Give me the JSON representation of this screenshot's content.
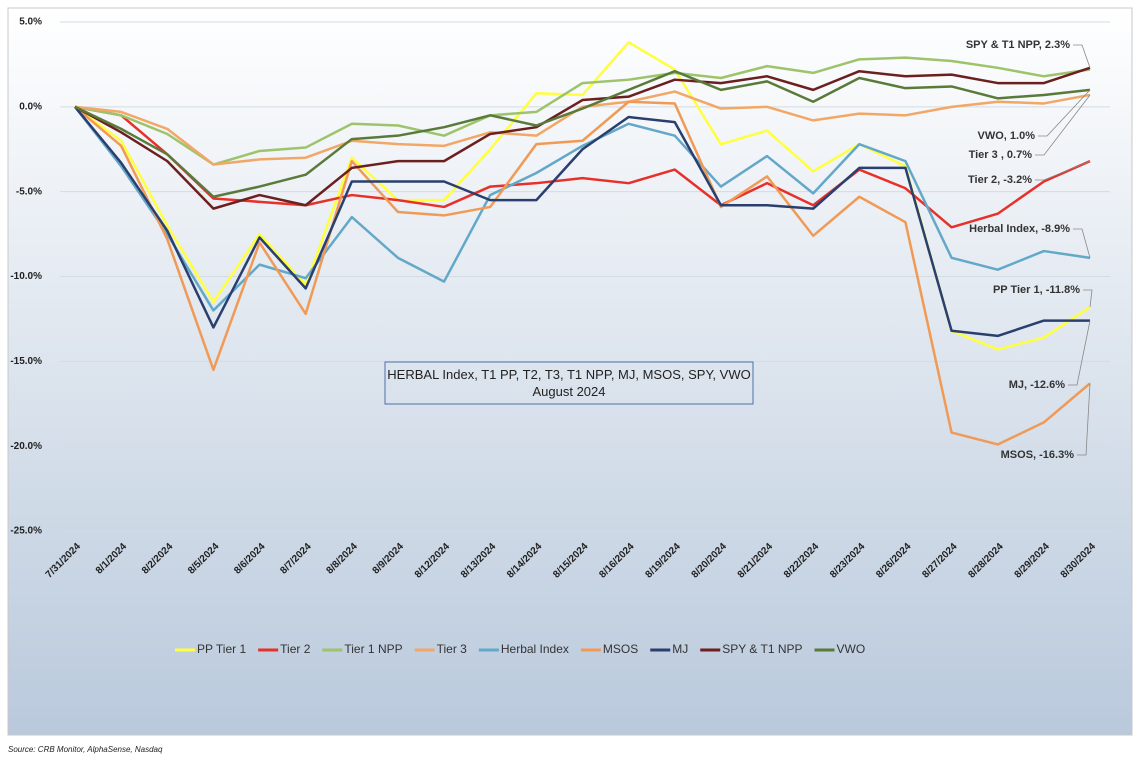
{
  "chart_data": {
    "type": "line",
    "title": [
      "HERBAL Index, T1 PP, T2, T3, T1 NPP, MJ, MSOS, SPY, VWO",
      "August 2024"
    ],
    "source": "Source: CRB Monitor, AlphaSense, Nasdaq",
    "categories": [
      "7/31/2024",
      "8/1/2024",
      "8/2/2024",
      "8/5/2024",
      "8/6/2024",
      "8/7/2024",
      "8/8/2024",
      "8/9/2024",
      "8/12/2024",
      "8/13/2024",
      "8/14/2024",
      "8/15/2024",
      "8/16/2024",
      "8/19/2024",
      "8/20/2024",
      "8/21/2024",
      "8/22/2024",
      "8/23/2024",
      "8/26/2024",
      "8/27/2024",
      "8/28/2024",
      "8/29/2024",
      "8/30/2024"
    ],
    "series": [
      {
        "name": "PP Tier 1",
        "color": "#ffff40",
        "values": [
          0,
          -2,
          -7,
          -11.5,
          -7.5,
          -10.5,
          -3,
          -5.5,
          -5.5,
          -2.5,
          0.8,
          0.7,
          3.8,
          2.2,
          -2.2,
          -1.4,
          -3.8,
          -2.2,
          -3.5,
          -13.2,
          -14.3,
          -13.6,
          -11.8
        ]
      },
      {
        "name": "Tier 2",
        "color": "#e8302a",
        "values": [
          0,
          -0.5,
          -2.8,
          -5.4,
          -5.6,
          -5.8,
          -5.2,
          -5.5,
          -5.9,
          -4.7,
          -4.5,
          -4.2,
          -4.5,
          -3.7,
          -5.8,
          -4.5,
          -5.8,
          -3.7,
          -4.8,
          -7.1,
          -6.3,
          -4.4,
          -3.2
        ]
      },
      {
        "name": "Tier 1 NPP",
        "color": "#9dc36b",
        "values": [
          0,
          -0.5,
          -1.6,
          -3.4,
          -2.6,
          -2.4,
          -1,
          -1.1,
          -1.7,
          -0.5,
          -0.3,
          1.4,
          1.6,
          2,
          1.7,
          2.4,
          2,
          2.8,
          2.9,
          2.7,
          2.3,
          1.8,
          2.2
        ]
      },
      {
        "name": "Tier 3",
        "color": "#f2a766",
        "values": [
          0,
          -0.3,
          -1.3,
          -3.4,
          -3.1,
          -3,
          -2,
          -2.2,
          -2.3,
          -1.5,
          -1.7,
          0,
          0.3,
          0.9,
          -0.1,
          0,
          -0.8,
          -0.4,
          -0.5,
          0,
          0.3,
          0.2,
          0.7
        ]
      },
      {
        "name": "Herbal Index",
        "color": "#63a8c8",
        "values": [
          0,
          -3.5,
          -7.5,
          -12,
          -9.3,
          -10.1,
          -6.5,
          -8.9,
          -10.3,
          -5.2,
          -3.9,
          -2.3,
          -1,
          -1.7,
          -4.7,
          -2.9,
          -5.1,
          -2.2,
          -3.2,
          -8.9,
          -9.6,
          -8.5,
          -8.9
        ]
      },
      {
        "name": "MSOS",
        "color": "#f09a55",
        "values": [
          0,
          -2.3,
          -7.8,
          -15.5,
          -8,
          -12.2,
          -3.2,
          -6.2,
          -6.4,
          -5.9,
          -2.2,
          -2,
          0.3,
          0.2,
          -5.9,
          -4.1,
          -7.6,
          -5.3,
          -6.8,
          -19.2,
          -19.9,
          -18.6,
          -16.3
        ]
      },
      {
        "name": "MJ",
        "color": "#2a3f6e",
        "values": [
          0,
          -3.3,
          -7.3,
          -13,
          -7.7,
          -10.7,
          -4.4,
          -4.4,
          -4.4,
          -5.5,
          -5.5,
          -2.5,
          -0.6,
          -0.9,
          -5.8,
          -5.8,
          -6,
          -3.6,
          -3.6,
          -13.2,
          -13.5,
          -12.6,
          -12.6
        ]
      },
      {
        "name": "SPY & T1 NPP",
        "color": "#6b1f1f",
        "values": [
          0,
          -1.5,
          -3.2,
          -6,
          -5.2,
          -5.8,
          -3.6,
          -3.2,
          -3.2,
          -1.6,
          -1.2,
          0.4,
          0.6,
          1.6,
          1.4,
          1.8,
          1,
          2.1,
          1.8,
          1.9,
          1.4,
          1.4,
          2.3
        ]
      },
      {
        "name": "VWO",
        "color": "#5a7a3a",
        "values": [
          0,
          -1.3,
          -2.8,
          -5.3,
          -4.7,
          -4,
          -1.9,
          -1.7,
          -1.2,
          -0.5,
          -1.1,
          -0.1,
          1,
          2.1,
          1,
          1.5,
          0.3,
          1.7,
          1.1,
          1.2,
          0.5,
          0.7,
          1.0
        ]
      }
    ],
    "annotations": [
      "SPY & T1 NPP, 2.3%",
      "VWO, 1.0%",
      "Tier 3 , 0.7%",
      "Tier 2, -3.2%",
      "Herbal Index, -8.9%",
      "PP Tier 1, -11.8%",
      "MJ, -12.6%",
      "MSOS, -16.3%"
    ],
    "ylim": [
      -25,
      5
    ],
    "yticks": [
      {
        "value": 5,
        "label": "5.0%"
      },
      {
        "value": 0,
        "label": "0.0%"
      },
      {
        "value": -5,
        "label": "-5.0%"
      },
      {
        "value": -10,
        "label": "-10.0%"
      },
      {
        "value": -15,
        "label": "-15.0%"
      },
      {
        "value": -20,
        "label": "-20.0%"
      },
      {
        "value": -25,
        "label": "-25.0%"
      }
    ],
    "grid": true
  }
}
